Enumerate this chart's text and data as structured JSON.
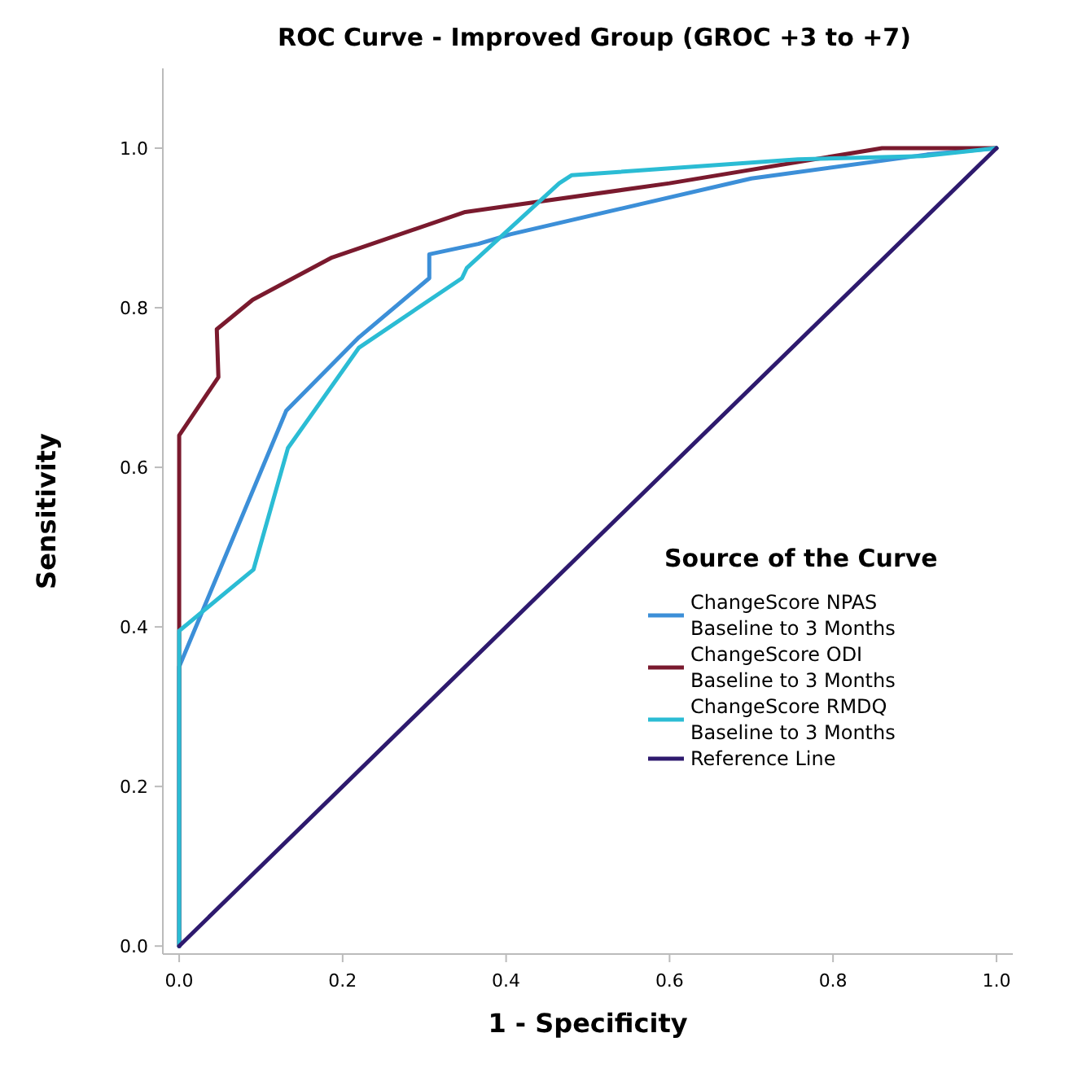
{
  "chart_data": {
    "type": "line",
    "title": "ROC Curve - Improved Group (GROC +3 to +7)",
    "xlabel": "1 - Specificity",
    "ylabel": "Sensitivity",
    "legend_title": "Source of the Curve",
    "legend": "right",
    "grid": false,
    "marker": "none",
    "line_style": "solid",
    "xlim": [
      -0.02,
      1.02
    ],
    "ylim": [
      -0.01,
      1.1
    ],
    "xticks": [
      {
        "value": 0,
        "label": "0.0"
      },
      {
        "value": 0.2,
        "label": "0.2"
      },
      {
        "value": 0.4,
        "label": "0.4"
      },
      {
        "value": 0.6,
        "label": "0.6"
      },
      {
        "value": 0.8,
        "label": "0.8"
      },
      {
        "value": 1,
        "label": "1.0"
      }
    ],
    "yticks": [
      {
        "value": 0,
        "label": "0.0"
      },
      {
        "value": 0.2,
        "label": "0.2"
      },
      {
        "value": 0.4,
        "label": "0.4"
      },
      {
        "value": 0.6,
        "label": "0.6"
      },
      {
        "value": 0.8,
        "label": "0.8"
      },
      {
        "value": 1,
        "label": "1.0"
      }
    ],
    "series": [
      {
        "name": "ChangeScore NPAS Baseline to 3 Months",
        "color": "#3c8fd8",
        "x": [
          0,
          0,
          0.131,
          0.22,
          0.306,
          0.306,
          0.366,
          0.405,
          0.565,
          0.7,
          0.915,
          1
        ],
        "values": [
          0,
          0.35,
          0.671,
          0.763,
          0.837,
          0.867,
          0.88,
          0.892,
          0.93,
          0.962,
          0.992,
          1
        ]
      },
      {
        "name": "ChangeScore ODI Baseline to 3 Months",
        "color": "#7a1a2e",
        "x": [
          0,
          0,
          0.048,
          0.046,
          0.09,
          0.187,
          0.35,
          0.6,
          0.86,
          0.91,
          1
        ],
        "values": [
          0,
          0.64,
          0.713,
          0.773,
          0.81,
          0.863,
          0.92,
          0.956,
          1,
          1,
          1
        ]
      },
      {
        "name": "ChangeScore RMDQ Baseline to 3 Months",
        "color": "#2bbcd4",
        "x": [
          0,
          0,
          0.091,
          0.133,
          0.22,
          0.346,
          0.352,
          0.465,
          0.48,
          0.757,
          0.91,
          1
        ],
        "values": [
          0,
          0.395,
          0.472,
          0.624,
          0.75,
          0.837,
          0.85,
          0.956,
          0.966,
          0.986,
          0.99,
          1
        ]
      },
      {
        "name": "Reference Line",
        "color": "#2e1a6e",
        "x": [
          0,
          1
        ],
        "values": [
          0,
          1
        ]
      }
    ]
  }
}
